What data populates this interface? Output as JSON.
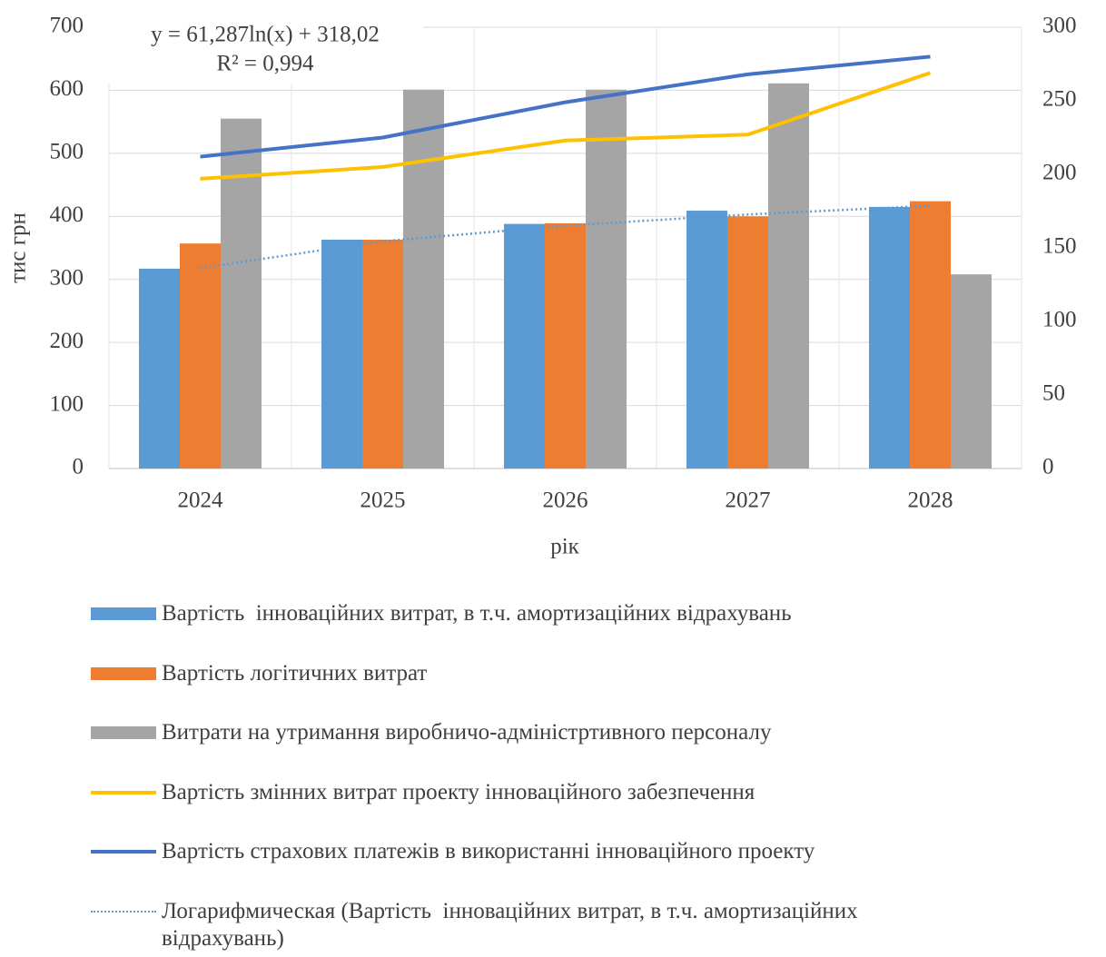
{
  "chart_data": {
    "type": "bar",
    "x_label": "рік",
    "y_label": "тис грн",
    "annotations": [
      "y = 61,287ln(x)  + 318,02",
      "R² = 0,994"
    ],
    "categories": [
      "2024",
      "2025",
      "2026",
      "2027",
      "2028"
    ],
    "ylim": [
      0,
      700
    ],
    "yticks": [
      0,
      100,
      200,
      300,
      400,
      500,
      600,
      700
    ],
    "y2lim": [
      0,
      300
    ],
    "y2ticks": [
      0,
      50,
      100,
      150,
      200,
      250,
      300
    ],
    "grid": true,
    "legend": "bottom",
    "series": [
      {
        "name": "Вартість  інноваційних витрат, в т.ч. амортизаційних відрахувань",
        "type": "bar",
        "color": "#5b9bd5",
        "values": [
          317,
          363,
          388,
          409,
          415
        ]
      },
      {
        "name": "Вартість логітичних витрат",
        "type": "bar",
        "color": "#ed7d31",
        "values": [
          357,
          363,
          389,
          400,
          424
        ]
      },
      {
        "name": "Витрати на утримання виробничо-адміністртивного персоналу",
        "type": "bar",
        "color": "#a5a5a5",
        "values": [
          555,
          601,
          601,
          611,
          308
        ]
      },
      {
        "name": "Вартість змінних витрат проекту інноваційного забезпечення",
        "type": "line",
        "axis": "y2",
        "color": "#ffc000",
        "values": [
          197,
          205,
          223,
          227,
          269
        ]
      },
      {
        "name": "Вартість страхових платежів в використанні інноваційного проекту",
        "type": "line",
        "axis": "y2",
        "color": "#4472c4",
        "values": [
          212,
          225,
          249,
          268,
          280
        ]
      },
      {
        "name": "Логарифмическая (Вартість  інноваційних витрат, в т.ч. амортизаційних відрахувань)",
        "type": "line",
        "dash": "dotted",
        "color": "#5b9bd5",
        "values": [
          318.02,
          360.5,
          385.3,
          403.0,
          416.7
        ]
      }
    ]
  }
}
